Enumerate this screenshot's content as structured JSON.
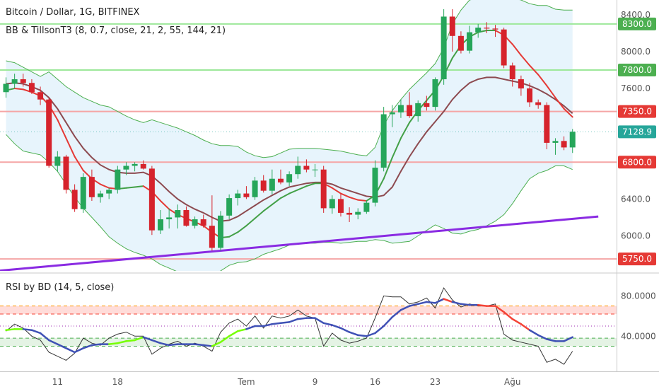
{
  "chart_data": [
    {
      "type": "candlestick",
      "title": "Bitcoin / Dollar, 1G, BITFINEX",
      "indicator_label": "BB & TillsonT3 (8, 0.7, close, 21, 2, 55, 144, 21)",
      "ylim": [
        5620,
        8560
      ],
      "y_ticks": [
        {
          "value": 8400,
          "label": "8400.0"
        },
        {
          "value": 8000,
          "label": "8000.0"
        },
        {
          "value": 7600,
          "label": "7600.0"
        },
        {
          "value": 6400,
          "label": "6400.0"
        },
        {
          "value": 6000,
          "label": "6000.0"
        }
      ],
      "price_badges": [
        {
          "value": 8300,
          "label": "8300.0",
          "color": "#4caf50",
          "line": "#9de89a"
        },
        {
          "value": 7800,
          "label": "7800.0",
          "color": "#4caf50",
          "line": "#9de89a"
        },
        {
          "value": 7350,
          "label": "7350.0",
          "color": "#e53935",
          "line": "#f5a5a5"
        },
        {
          "value": 7128.9,
          "label": "7128.9",
          "color": "#26a69a",
          "line": null
        },
        {
          "value": 6800,
          "label": "6800.0",
          "color": "#e53935",
          "line": "#f5a5a5"
        },
        {
          "value": 5750,
          "label": "5750.0",
          "color": "#e53935",
          "line": "#f5a5a5"
        }
      ],
      "x_labels": [
        {
          "index": 6,
          "label": "11"
        },
        {
          "index": 13,
          "label": "18"
        },
        {
          "index": 28,
          "label": "Tem"
        },
        {
          "index": 36,
          "label": "9"
        },
        {
          "index": 43,
          "label": "16"
        },
        {
          "index": 50,
          "label": "23"
        },
        {
          "index": 59,
          "label": "Ağu"
        }
      ],
      "candles": [
        [
          7560,
          7720,
          7500,
          7650
        ],
        [
          7650,
          7760,
          7600,
          7700
        ],
        [
          7700,
          7760,
          7620,
          7660
        ],
        [
          7660,
          7700,
          7540,
          7560
        ],
        [
          7560,
          7620,
          7420,
          7480
        ],
        [
          7480,
          7500,
          6740,
          6760
        ],
        [
          6760,
          6920,
          6700,
          6860
        ],
        [
          6860,
          6880,
          6460,
          6500
        ],
        [
          6500,
          6560,
          6260,
          6290
        ],
        [
          6290,
          6680,
          6250,
          6640
        ],
        [
          6640,
          6720,
          6380,
          6420
        ],
        [
          6420,
          6490,
          6360,
          6460
        ],
        [
          6460,
          6520,
          6400,
          6500
        ],
        [
          6500,
          6760,
          6460,
          6720
        ],
        [
          6720,
          6800,
          6660,
          6760
        ],
        [
          6760,
          6800,
          6700,
          6780
        ],
        [
          6780,
          6820,
          6720,
          6730
        ],
        [
          6730,
          6760,
          6010,
          6060
        ],
        [
          6060,
          6280,
          6020,
          6180
        ],
        [
          6180,
          6300,
          6080,
          6200
        ],
        [
          6200,
          6340,
          6080,
          6280
        ],
        [
          6280,
          6320,
          6100,
          6110
        ],
        [
          6110,
          6210,
          6080,
          6180
        ],
        [
          6180,
          6230,
          6090,
          6110
        ],
        [
          6110,
          6440,
          5840,
          5870
        ],
        [
          5870,
          6270,
          5840,
          6220
        ],
        [
          6220,
          6450,
          6180,
          6410
        ],
        [
          6410,
          6500,
          6330,
          6460
        ],
        [
          6460,
          6540,
          6400,
          6420
        ],
        [
          6420,
          6640,
          6390,
          6600
        ],
        [
          6600,
          6660,
          6470,
          6490
        ],
        [
          6490,
          6720,
          6450,
          6620
        ],
        [
          6620,
          6720,
          6560,
          6580
        ],
        [
          6580,
          6700,
          6540,
          6670
        ],
        [
          6670,
          6860,
          6620,
          6760
        ],
        [
          6760,
          6830,
          6690,
          6720
        ],
        [
          6720,
          6780,
          6640,
          6720
        ],
        [
          6720,
          6760,
          6250,
          6300
        ],
        [
          6300,
          6440,
          6240,
          6400
        ],
        [
          6400,
          6460,
          6210,
          6250
        ],
        [
          6250,
          6310,
          6150,
          6230
        ],
        [
          6230,
          6300,
          6180,
          6260
        ],
        [
          6260,
          6380,
          6240,
          6360
        ],
        [
          6360,
          6820,
          6320,
          6740
        ],
        [
          6740,
          7400,
          6700,
          7320
        ],
        [
          7320,
          7420,
          7180,
          7340
        ],
        [
          7340,
          7480,
          7280,
          7420
        ],
        [
          7420,
          7560,
          7280,
          7300
        ],
        [
          7300,
          7470,
          7240,
          7440
        ],
        [
          7440,
          7520,
          7360,
          7400
        ],
        [
          7400,
          7720,
          7360,
          7700
        ],
        [
          7700,
          8460,
          7640,
          8380
        ],
        [
          8380,
          8460,
          8000,
          8170
        ],
        [
          8170,
          8220,
          7980,
          8010
        ],
        [
          8010,
          8280,
          7980,
          8210
        ],
        [
          8210,
          8300,
          8150,
          8260
        ],
        [
          8260,
          8320,
          8200,
          8250
        ],
        [
          8250,
          8290,
          8160,
          8240
        ],
        [
          8240,
          8260,
          7820,
          7850
        ],
        [
          7850,
          7880,
          7620,
          7700
        ],
        [
          7700,
          7740,
          7520,
          7600
        ],
        [
          7600,
          7660,
          7400,
          7450
        ],
        [
          7450,
          7480,
          7380,
          7420
        ],
        [
          7420,
          7450,
          6940,
          7010
        ],
        [
          7010,
          7060,
          6880,
          7030
        ],
        [
          7030,
          7080,
          6930,
          6960
        ],
        [
          6960,
          7160,
          6900,
          7130
        ]
      ],
      "bb_upper": [
        7900,
        7880,
        7830,
        7780,
        7730,
        7780,
        7700,
        7620,
        7560,
        7500,
        7460,
        7420,
        7400,
        7350,
        7300,
        7260,
        7230,
        7260,
        7230,
        7200,
        7170,
        7130,
        7090,
        7040,
        7000,
        6980,
        6980,
        6970,
        6910,
        6870,
        6850,
        6860,
        6900,
        6940,
        6950,
        6950,
        6950,
        6940,
        6930,
        6920,
        6900,
        6880,
        6870,
        6960,
        7200,
        7360,
        7480,
        7590,
        7680,
        7770,
        7870,
        8040,
        8300,
        8450,
        8560,
        8580,
        8600,
        8610,
        8600,
        8580,
        8560,
        8520,
        8500,
        8500,
        8460,
        8450,
        8450
      ],
      "bb_lower": [
        7100,
        7000,
        6920,
        6900,
        6880,
        6800,
        6700,
        6560,
        6420,
        6300,
        6200,
        6100,
        5990,
        5920,
        5860,
        5820,
        5790,
        5750,
        5690,
        5650,
        5610,
        5560,
        5520,
        5480,
        5540,
        5620,
        5680,
        5710,
        5720,
        5750,
        5800,
        5830,
        5860,
        5900,
        5920,
        5920,
        5920,
        5930,
        5930,
        5920,
        5930,
        5940,
        5940,
        5960,
        5950,
        5920,
        5930,
        5940,
        6000,
        6060,
        6120,
        6080,
        6030,
        6020,
        6050,
        6070,
        6110,
        6160,
        6230,
        6350,
        6490,
        6620,
        6680,
        6710,
        6760,
        6760,
        6720
      ],
      "t3_fast": [
        7580,
        7600,
        7590,
        7560,
        7520,
        7420,
        7260,
        7060,
        6860,
        6710,
        6620,
        6560,
        6520,
        6510,
        6520,
        6530,
        6540,
        6480,
        6380,
        6290,
        6230,
        6190,
        6150,
        6110,
        6040,
        5980,
        5990,
        6040,
        6110,
        6190,
        6270,
        6340,
        6410,
        6460,
        6500,
        6540,
        6570,
        6570,
        6520,
        6460,
        6420,
        6390,
        6380,
        6440,
        6620,
        6850,
        7060,
        7230,
        7360,
        7470,
        7580,
        7740,
        7930,
        8070,
        8160,
        8210,
        8230,
        8230,
        8180,
        8080,
        7960,
        7850,
        7750,
        7630,
        7500,
        7380,
        7290
      ],
      "t3_slow": [
        7650,
        7660,
        7650,
        7620,
        7580,
        7500,
        7380,
        7230,
        7080,
        6950,
        6850,
        6770,
        6720,
        6690,
        6680,
        6680,
        6690,
        6650,
        6570,
        6480,
        6400,
        6340,
        6290,
        6250,
        6200,
        6160,
        6170,
        6210,
        6270,
        6330,
        6390,
        6440,
        6490,
        6530,
        6550,
        6570,
        6580,
        6580,
        6560,
        6520,
        6490,
        6460,
        6430,
        6420,
        6440,
        6530,
        6700,
        6860,
        7000,
        7130,
        7240,
        7350,
        7480,
        7580,
        7660,
        7700,
        7720,
        7720,
        7700,
        7680,
        7660,
        7630,
        7590,
        7540,
        7480,
        7410,
        7330
      ],
      "trendline": {
        "start": {
          "index": -1,
          "value": 5620
        },
        "end": {
          "index": 69,
          "value": 6210
        }
      }
    },
    {
      "type": "line",
      "title": "RSI by BD (14, 5, close)",
      "ylim": [
        5,
        100
      ],
      "y_ticks": [
        {
          "value": 80,
          "label": "80.0000"
        },
        {
          "value": 40,
          "label": "40.0000"
        }
      ],
      "levels": [
        {
          "value": 70,
          "color": "#ff9800",
          "style": "dash"
        },
        {
          "value": 62,
          "color": "#f44336",
          "style": "dash"
        },
        {
          "value": 50,
          "color": "#9c27b0",
          "style": "dot"
        },
        {
          "value": 38,
          "color": "#4caf50",
          "style": "dash"
        },
        {
          "value": 30,
          "color": "#4caf50",
          "style": "dash"
        }
      ],
      "zones": [
        {
          "from": 62,
          "to": 70,
          "color": "#ff8a80"
        },
        {
          "from": 30,
          "to": 38,
          "color": "#a5d6a7"
        }
      ],
      "rsi": [
        45,
        52,
        48,
        40,
        36,
        24,
        20,
        16,
        23,
        38,
        33,
        31,
        38,
        42,
        44,
        40,
        40,
        22,
        28,
        32,
        35,
        30,
        33,
        30,
        25,
        44,
        53,
        57,
        50,
        60,
        48,
        60,
        58,
        60,
        66,
        60,
        58,
        30,
        43,
        36,
        33,
        35,
        38,
        58,
        80,
        79,
        79,
        72,
        74,
        78,
        68,
        88,
        76,
        69,
        72,
        70,
        70,
        72,
        42,
        36,
        34,
        32,
        30,
        14,
        17,
        12,
        25
      ],
      "rsi_smooth": [
        46,
        47,
        47,
        46,
        43,
        36,
        32,
        28,
        24,
        28,
        31,
        32,
        32,
        33,
        35,
        36,
        39,
        36,
        33,
        31,
        32,
        32,
        32,
        31,
        30,
        34,
        40,
        45,
        47,
        50,
        50,
        52,
        53,
        54,
        57,
        58,
        58,
        53,
        51,
        48,
        44,
        41,
        40,
        43,
        50,
        59,
        66,
        70,
        72,
        74,
        73,
        77,
        74,
        72,
        71,
        71,
        70,
        70,
        64,
        57,
        52,
        46,
        41,
        37,
        35,
        35,
        39
      ],
      "rsi_smooth_colors": [
        "#76ff03",
        "#76ff03",
        "#76ff03",
        "#3f51b5",
        "#3f51b5",
        "#3f51b5",
        "#3f51b5",
        "#3f51b5",
        "#3f51b5",
        "#3f51b5",
        "#3f51b5",
        "#3f51b5",
        "#3f51b5",
        "#76ff03",
        "#76ff03",
        "#76ff03",
        "#76ff03",
        "#3f51b5",
        "#3f51b5",
        "#3f51b5",
        "#3f51b5",
        "#3f51b5",
        "#3f51b5",
        "#3f51b5",
        "#3f51b5",
        "#76ff03",
        "#76ff03",
        "#76ff03",
        "#76ff03",
        "#3f51b5",
        "#3f51b5",
        "#3f51b5",
        "#3f51b5",
        "#3f51b5",
        "#3f51b5",
        "#3f51b5",
        "#3f51b5",
        "#3f51b5",
        "#3f51b5",
        "#3f51b5",
        "#3f51b5",
        "#3f51b5",
        "#3f51b5",
        "#3f51b5",
        "#3f51b5",
        "#3f51b5",
        "#3f51b5",
        "#3f51b5",
        "#3f51b5",
        "#3f51b5",
        "#3f51b5",
        "#3f51b5",
        "#f44336",
        "#3f51b5",
        "#3f51b5",
        "#3f51b5",
        "#f44336",
        "#f44336",
        "#f44336",
        "#f44336",
        "#f44336",
        "#f44336",
        "#3f51b5",
        "#3f51b5",
        "#3f51b5",
        "#3f51b5",
        "#3f51b5"
      ]
    }
  ]
}
